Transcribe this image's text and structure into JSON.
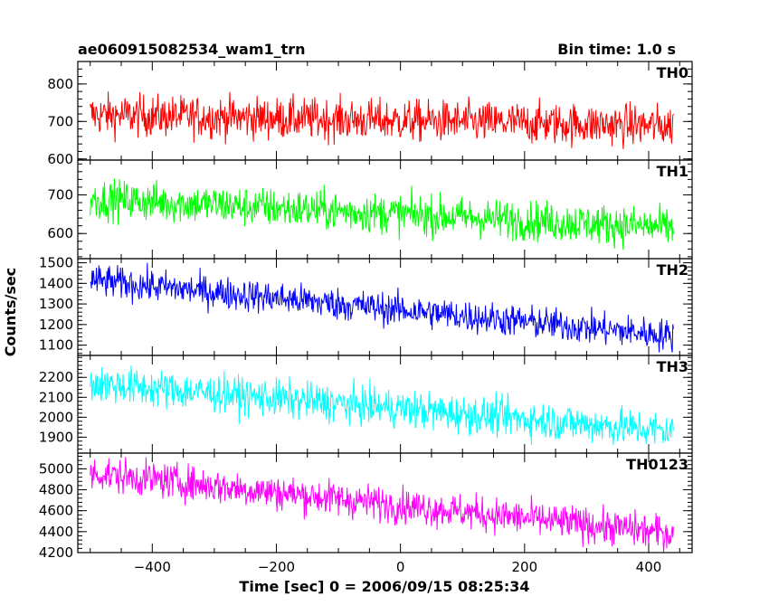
{
  "header": {
    "title": "ae060915082534_wam1_trn",
    "bin_time": "Bin time: 1.0 s"
  },
  "chart_data": {
    "type": "line",
    "xlabel": "Time [sec] 0 = 2006/09/15 08:25:34",
    "ylabel": "Counts/sec",
    "xlim": [
      -520,
      470
    ],
    "x_range": [
      -500,
      440
    ],
    "xticks": [
      -400,
      -200,
      0,
      200,
      400
    ],
    "xtick_labels": [
      "−400",
      "−200",
      "0",
      "200",
      "400"
    ],
    "panels": [
      {
        "name": "TH0",
        "color": "#ff0000",
        "ylim": [
          597,
          860
        ],
        "yticks": [
          600,
          700,
          800
        ],
        "ytick_labels": [
          "600",
          "700",
          "800"
        ],
        "trend_start": 718,
        "trend_end": 688,
        "noise_sd": 28
      },
      {
        "name": "TH1",
        "color": "#00ff00",
        "ylim": [
          535,
          790
        ],
        "yticks": [
          600,
          700
        ],
        "ytick_labels": [
          "600",
          "700"
        ],
        "trend_start": 690,
        "trend_end": 615,
        "noise_sd": 26
      },
      {
        "name": "TH2",
        "color": "#0000ff",
        "ylim": [
          1050,
          1520
        ],
        "yticks": [
          1100,
          1200,
          1300,
          1400,
          1500
        ],
        "ytick_labels": [
          "1100",
          "1200",
          "1300",
          "1400",
          "1500"
        ],
        "trend_start": 1415,
        "trend_end": 1145,
        "noise_sd": 40
      },
      {
        "name": "TH3",
        "color": "#00ffff",
        "ylim": [
          1820,
          2310
        ],
        "yticks": [
          1900,
          2000,
          2100,
          2200
        ],
        "ytick_labels": [
          "1900",
          "2000",
          "2100",
          "2200"
        ],
        "trend_start": 2170,
        "trend_end": 1930,
        "noise_sd": 48
      },
      {
        "name": "TH0123",
        "color": "#ff00ff",
        "ylim": [
          4200,
          5150
        ],
        "yticks": [
          4200,
          4400,
          4600,
          4800,
          5000
        ],
        "ytick_labels": [
          "4200",
          "4400",
          "4600",
          "4800",
          "5000"
        ],
        "trend_start": 4960,
        "trend_end": 4380,
        "noise_sd": 85
      }
    ]
  }
}
